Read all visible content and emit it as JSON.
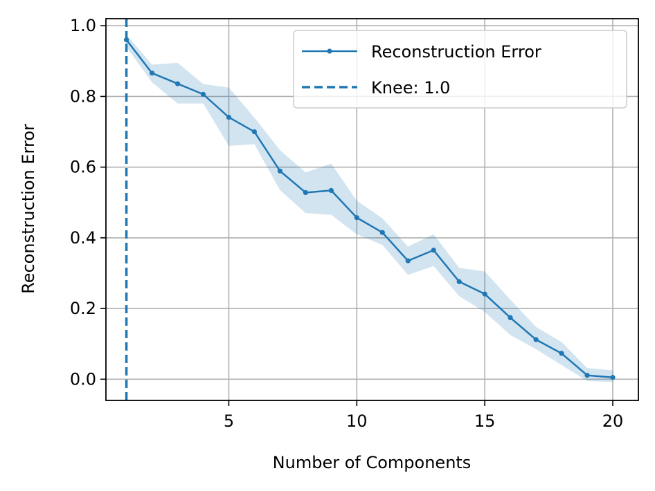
{
  "chart_data": {
    "type": "line",
    "xlabel": "Number of Components",
    "ylabel": "Reconstruction Error",
    "xlim": [
      0.2,
      21.0
    ],
    "ylim": [
      -0.06,
      1.02
    ],
    "xticks": [
      5,
      10,
      15,
      20
    ],
    "xtick_labels": [
      "5",
      "10",
      "15",
      "20"
    ],
    "yticks": [
      0.0,
      0.2,
      0.4,
      0.6,
      0.8,
      1.0
    ],
    "ytick_labels": [
      "0.0",
      "0.2",
      "0.4",
      "0.6",
      "0.8",
      "1.0"
    ],
    "grid": true,
    "legend_position": "top-right",
    "series": [
      {
        "name": "Reconstruction Error",
        "color": "#1f77b4",
        "x": [
          1,
          2,
          3,
          4,
          5,
          6,
          7,
          8,
          9,
          10,
          11,
          12,
          13,
          14,
          15,
          16,
          17,
          18,
          19,
          20
        ],
        "values": [
          0.96,
          0.866,
          0.836,
          0.806,
          0.741,
          0.7,
          0.589,
          0.528,
          0.534,
          0.457,
          0.415,
          0.335,
          0.365,
          0.276,
          0.241,
          0.174,
          0.112,
          0.073,
          0.011,
          0.005
        ],
        "band_lower": [
          0.94,
          0.84,
          0.78,
          0.78,
          0.66,
          0.665,
          0.535,
          0.47,
          0.465,
          0.41,
          0.38,
          0.295,
          0.32,
          0.235,
          0.19,
          0.125,
          0.085,
          0.04,
          -0.005,
          -0.008
        ],
        "band_upper": [
          0.975,
          0.89,
          0.895,
          0.835,
          0.825,
          0.74,
          0.648,
          0.585,
          0.61,
          0.505,
          0.455,
          0.375,
          0.41,
          0.315,
          0.305,
          0.225,
          0.148,
          0.105,
          0.032,
          0.025
        ]
      }
    ],
    "knee": {
      "label": "Knee: 1.0",
      "x": 1.0,
      "color": "#1f77b4"
    }
  }
}
